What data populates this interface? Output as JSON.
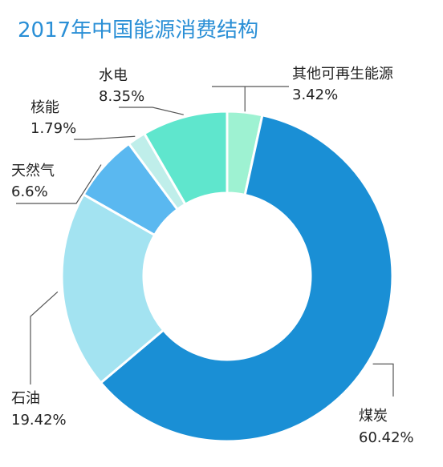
{
  "chart_data": {
    "type": "pie",
    "title": "2017年中国能源消费结构",
    "start_category": "其他可再生能源",
    "categories": [
      "煤炭",
      "石油",
      "天然气",
      "核能",
      "水电",
      "其他可再生能源"
    ],
    "values": [
      60.42,
      19.42,
      6.6,
      1.79,
      8.35,
      3.42
    ],
    "value_labels": [
      "60.42%",
      "19.42%",
      "6.6%",
      "1.79%",
      "8.35%",
      "3.42%"
    ],
    "colors": [
      "#1a8fd5",
      "#a3e3f1",
      "#5ab8f0",
      "#bfeeea",
      "#5fe6cd",
      "#9ef2d2"
    ]
  }
}
